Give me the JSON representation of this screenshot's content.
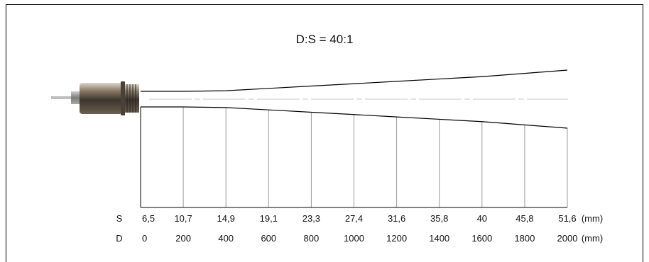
{
  "title": "D:S = 40:1",
  "rows": {
    "s": {
      "label": "S",
      "unit": "(mm)",
      "values": [
        "6,5",
        "10,7",
        "14,9",
        "19,1",
        "23,3",
        "27,4",
        "31,6",
        "35,8",
        "40",
        "45,8",
        "51,6"
      ]
    },
    "d": {
      "label": "D",
      "unit": "(mm)",
      "values": [
        "0",
        "200",
        "400",
        "600",
        "800",
        "1000",
        "1200",
        "1400",
        "1600",
        "1800",
        "2000"
      ]
    }
  },
  "beam": {
    "spot_size_mm": [
      6.5,
      10.7,
      14.9,
      19.1,
      23.3,
      27.4,
      31.6,
      35.8,
      40,
      45.8,
      51.6
    ],
    "distance_mm": [
      0,
      200,
      400,
      600,
      800,
      1000,
      1200,
      1400,
      1600,
      1800,
      2000
    ]
  },
  "colors": {
    "lines": "#000000",
    "guides": "#9a9a9a",
    "axis": "#c8c8c8",
    "sensor_body": "#7a6a55"
  }
}
